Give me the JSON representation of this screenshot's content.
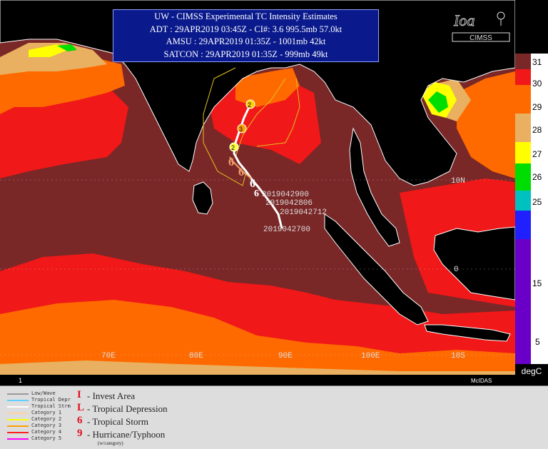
{
  "title": {
    "line1": "UW - CIMSS Experimental TC Intensity Estimates",
    "line2": "ADT : 29APR2019 03:45Z -   CI#: 3.6  995.5mb  57.0kt",
    "line3": "AMSU : 29APR2019 01:35Z -  1001mb  42kt",
    "line4": "SATCON : 29APR2019 01:35Z -  999mb  49kt"
  },
  "logo": {
    "text": "CIMSS",
    "icon": "cimss-logo-icon"
  },
  "map": {
    "frame_label": "1",
    "credit": "McIDAS",
    "longitudes": [
      "70E",
      "80E",
      "90E",
      "100E"
    ],
    "latitudes": [
      "10N",
      "0",
      "10S"
    ],
    "track_labels": [
      "2019042900",
      "2019042806",
      "2019042712",
      "2019042700"
    ],
    "track_category_labels": [
      "2",
      "3",
      "2"
    ],
    "colors": {
      "sst_31": "#7a2727",
      "sst_30": "#f01818",
      "sst_29": "#ff6a00",
      "sst_28": "#e8b060",
      "land": "#000000",
      "coast": "#ffffff"
    }
  },
  "colorbar": {
    "unit": "degC",
    "labels": [
      "31",
      "30",
      "29",
      "28",
      "27",
      "26",
      "25",
      "15",
      "5"
    ],
    "colors": [
      "#7a2727",
      "#f01818",
      "#ff6a00",
      "#e8b060",
      "#ffff00",
      "#00dd00",
      "#00c0c0",
      "#2020ff",
      "#6a00c8"
    ]
  },
  "legend": {
    "track_types": [
      {
        "label": "Low/Wave",
        "color": "#9a9a9a"
      },
      {
        "label": "Tropical Depr",
        "color": "#60d0ff"
      },
      {
        "label": "Tropical Strm",
        "color": "#ffffff"
      },
      {
        "label": "Category 1",
        "color": "#ffd0a0"
      },
      {
        "label": "Category 2",
        "color": "#ffff00"
      },
      {
        "label": "Category 3",
        "color": "#ffa000"
      },
      {
        "label": "Category 4",
        "color": "#ff2020"
      },
      {
        "label": "Category 5",
        "color": "#ff00ff"
      }
    ],
    "symbols": [
      {
        "symbol": "I",
        "label": "- Invest Area"
      },
      {
        "symbol": "L",
        "label": "- Tropical Depression"
      },
      {
        "symbol": "6",
        "label": "- Tropical Storm"
      },
      {
        "symbol": "9",
        "label": "- Hurricane/Typhoon"
      }
    ],
    "symbol_note": "(w/category)"
  }
}
